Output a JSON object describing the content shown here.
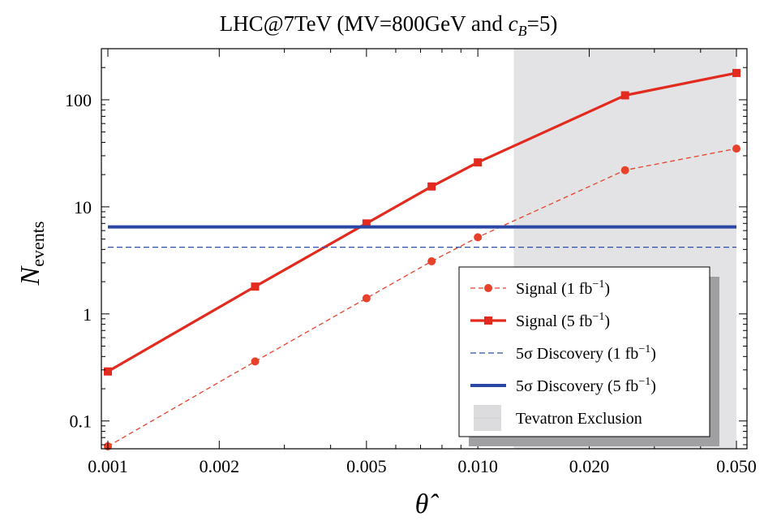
{
  "chart_data": {
    "type": "line",
    "title": {
      "prefix": "LHC@7TeV (MV=800GeV and ",
      "c": "c",
      "c_sub": "B",
      "suffix": "=5)"
    },
    "xlabel": "θ̂",
    "ylabel": {
      "main": "N",
      "sub": "events"
    },
    "x_scale": "log",
    "y_scale": "log",
    "xlim": [
      0.001,
      0.05
    ],
    "ylim": [
      0.055,
      300
    ],
    "x_ticks": [
      {
        "value": 0.001,
        "label": "0.001"
      },
      {
        "value": 0.002,
        "label": "0.002"
      },
      {
        "value": 0.005,
        "label": "0.005"
      },
      {
        "value": 0.01,
        "label": "0.010"
      },
      {
        "value": 0.02,
        "label": "0.020"
      },
      {
        "value": 0.05,
        "label": "0.050"
      }
    ],
    "y_ticks": [
      {
        "value": 0.1,
        "label": "0.1"
      },
      {
        "value": 1,
        "label": "1"
      },
      {
        "value": 10,
        "label": "10"
      },
      {
        "value": 100,
        "label": "100"
      }
    ],
    "shaded_region": {
      "name": "Tevatron Exclusion",
      "x_from": 0.0125,
      "x_to": 0.05,
      "color": "#e3e3e6"
    },
    "series": [
      {
        "name": "Signal (1 fb",
        "name_sup": "−1",
        "name_end": ")",
        "style": "dashed",
        "marker": "circle",
        "color": "#e8412a",
        "points": [
          {
            "x": 0.001,
            "y": 0.058
          },
          {
            "x": 0.0025,
            "y": 0.36
          },
          {
            "x": 0.005,
            "y": 1.4
          },
          {
            "x": 0.0075,
            "y": 3.1
          },
          {
            "x": 0.01,
            "y": 5.2
          },
          {
            "x": 0.025,
            "y": 22
          },
          {
            "x": 0.05,
            "y": 35
          }
        ]
      },
      {
        "name": "Signal (5 fb",
        "name_sup": "−1",
        "name_end": ")",
        "style": "solid",
        "marker": "square",
        "color": "#e32a1e",
        "points": [
          {
            "x": 0.001,
            "y": 0.29
          },
          {
            "x": 0.0025,
            "y": 1.8
          },
          {
            "x": 0.005,
            "y": 7.0
          },
          {
            "x": 0.0075,
            "y": 15.5
          },
          {
            "x": 0.01,
            "y": 26
          },
          {
            "x": 0.025,
            "y": 110
          },
          {
            "x": 0.05,
            "y": 178
          }
        ]
      },
      {
        "name": "5σ Discovery (1 fb",
        "name_sup": "−1",
        "name_end": ")",
        "style": "dashed",
        "marker": "none",
        "color": "#2d4fa8",
        "points": [
          {
            "x": 0.001,
            "y": 4.2
          },
          {
            "x": 0.05,
            "y": 4.2
          }
        ]
      },
      {
        "name": "5σ Discovery (5 fb",
        "name_sup": "−1",
        "name_end": ")",
        "style": "solid",
        "marker": "none",
        "color": "#2a47a6",
        "points": [
          {
            "x": 0.001,
            "y": 6.5
          },
          {
            "x": 0.05,
            "y": 6.5
          }
        ]
      }
    ],
    "legend": {
      "placement": "bottom-right",
      "entries": [
        {
          "label": "Signal (1 fb",
          "sup": "−1",
          "end": ")",
          "kind": "dashed-circle",
          "color": "#e8412a"
        },
        {
          "label": "Signal (5 fb",
          "sup": "−1",
          "end": ")",
          "kind": "solid-square",
          "color": "#e32a1e"
        },
        {
          "label": "5σ Discovery (1 fb",
          "sup": "−1",
          "end": ")",
          "kind": "dashed",
          "color": "#2d4fa8"
        },
        {
          "label": "5σ Discovery (5 fb",
          "sup": "−1",
          "end": ")",
          "kind": "solid",
          "color": "#2a47a6"
        },
        {
          "label": "Tevatron Exclusion",
          "sup": "",
          "end": "",
          "kind": "box",
          "color": "#dcdcdf"
        }
      ]
    }
  }
}
